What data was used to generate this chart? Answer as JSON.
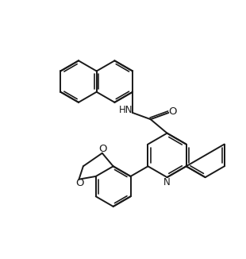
{
  "background_color": "#ffffff",
  "line_color": "#1a1a1a",
  "line_width": 1.4,
  "text_color": "#1a1a1a",
  "font_size": 8.5,
  "figsize": [
    3.1,
    3.26
  ],
  "dpi": 100,
  "xlim": [
    0,
    10
  ],
  "ylim": [
    0,
    10.5
  ]
}
